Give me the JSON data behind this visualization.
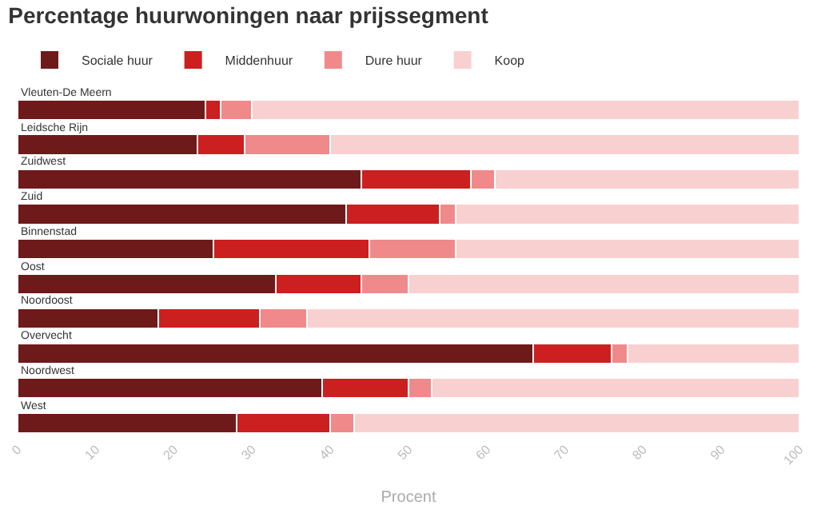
{
  "chart_data": {
    "type": "bar",
    "orientation": "horizontal",
    "stacked": true,
    "title": "Percentage huurwoningen naar prijssegment",
    "xlabel": "Procent",
    "categories": [
      "Vleuten-De Meern",
      "Leidsche Rijn",
      "Zuidwest",
      "Zuid",
      "Binnenstad",
      "Oost",
      "Noordoost",
      "Overvecht",
      "Noordwest",
      "West"
    ],
    "series": [
      {
        "name": "Sociale huur",
        "color": "#6e1a1a",
        "values": [
          24,
          23,
          44,
          42,
          25,
          33,
          18,
          66,
          39,
          28
        ]
      },
      {
        "name": "Middenhuur",
        "color": "#cc1f1f",
        "values": [
          2,
          6,
          14,
          12,
          20,
          11,
          13,
          10,
          11,
          12
        ]
      },
      {
        "name": "Dure huur",
        "color": "#f08a8a",
        "values": [
          4,
          11,
          3,
          2,
          11,
          6,
          6,
          2,
          3,
          3
        ]
      },
      {
        "name": "Koop",
        "color": "#f9d0d0",
        "values": [
          70,
          60,
          39,
          44,
          44,
          50,
          63,
          22,
          47,
          57
        ]
      }
    ],
    "xlim": [
      0,
      100
    ],
    "xticks": [
      0,
      10,
      20,
      30,
      40,
      50,
      60,
      70,
      80,
      90,
      100
    ],
    "legend": "top left"
  }
}
